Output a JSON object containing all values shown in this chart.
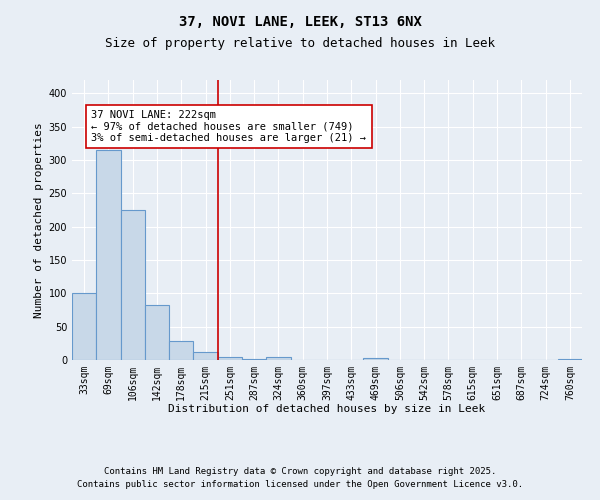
{
  "title_line1": "37, NOVI LANE, LEEK, ST13 6NX",
  "title_line2": "Size of property relative to detached houses in Leek",
  "xlabel": "Distribution of detached houses by size in Leek",
  "ylabel": "Number of detached properties",
  "categories": [
    "33sqm",
    "69sqm",
    "106sqm",
    "142sqm",
    "178sqm",
    "215sqm",
    "251sqm",
    "287sqm",
    "324sqm",
    "360sqm",
    "397sqm",
    "433sqm",
    "469sqm",
    "506sqm",
    "542sqm",
    "578sqm",
    "615sqm",
    "651sqm",
    "687sqm",
    "724sqm",
    "760sqm"
  ],
  "values": [
    100,
    315,
    225,
    82,
    28,
    12,
    5,
    2,
    5,
    0,
    0,
    0,
    3,
    0,
    0,
    0,
    0,
    0,
    0,
    0,
    2
  ],
  "bar_color": "#c8d8e8",
  "bar_edge_color": "#6699cc",
  "vline_x": 5.5,
  "vline_color": "#cc0000",
  "annotation_text": "37 NOVI LANE: 222sqm\n← 97% of detached houses are smaller (749)\n3% of semi-detached houses are larger (21) →",
  "annotation_box_color": "#ffffff",
  "annotation_box_edge_color": "#cc0000",
  "ylim": [
    0,
    420
  ],
  "yticks": [
    0,
    50,
    100,
    150,
    200,
    250,
    300,
    350,
    400
  ],
  "background_color": "#e8eef5",
  "grid_color": "#ffffff",
  "footer_line1": "Contains HM Land Registry data © Crown copyright and database right 2025.",
  "footer_line2": "Contains public sector information licensed under the Open Government Licence v3.0.",
  "title_fontsize": 10,
  "subtitle_fontsize": 9,
  "axis_label_fontsize": 8,
  "tick_fontsize": 7,
  "annotation_fontsize": 7.5,
  "footer_fontsize": 6.5
}
